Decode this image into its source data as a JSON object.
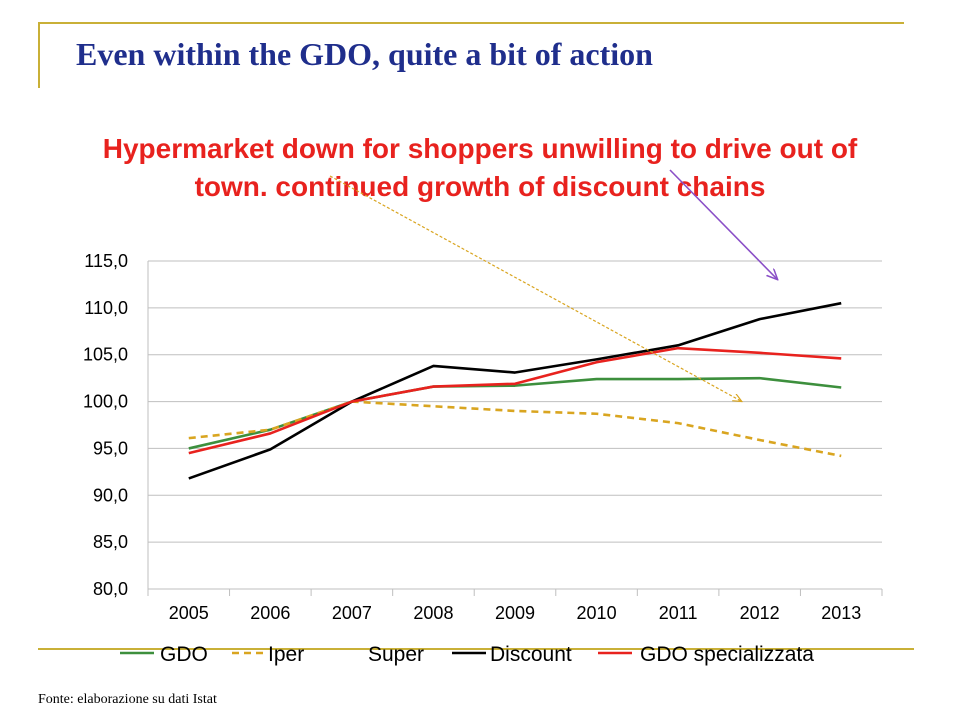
{
  "slide": {
    "title": "Even within the GDO, quite a bit of action",
    "source": "Fonte: elaborazione su dati Istat",
    "accent": "#1f2e8c",
    "frame_color": "#c9b037"
  },
  "chart_data": {
    "type": "line",
    "title": "Hypermarket down for shoppers unwilling to drive out of town. continued growth of discount chains",
    "title_color": "#e8221e",
    "xlabel": "",
    "ylabel": "",
    "x": [
      "2005",
      "2006",
      "2007",
      "2008",
      "2009",
      "2010",
      "2011",
      "2012",
      "2013"
    ],
    "ylim": [
      80,
      115
    ],
    "yticks": [
      "115,0",
      "110,0",
      "105,0",
      "100,0",
      "95,0",
      "90,0",
      "85,0",
      "80,0"
    ],
    "grid": true,
    "legend_position": "bottom",
    "series": [
      {
        "name": "GDO",
        "color": "#3d8f3d",
        "dash": false,
        "values": [
          95.0,
          97.0,
          100.0,
          101.6,
          101.7,
          102.4,
          102.4,
          102.5,
          101.5
        ]
      },
      {
        "name": "Iper",
        "color": "#d9a520",
        "dash": true,
        "values": [
          96.1,
          97.0,
          100.0,
          99.5,
          99.0,
          98.7,
          97.7,
          95.9,
          94.2
        ]
      },
      {
        "name": "Super",
        "color": "#ffffff",
        "dash": false,
        "values": [
          null,
          null,
          null,
          null,
          null,
          null,
          null,
          null,
          null
        ]
      },
      {
        "name": "Discount",
        "color": "#000000",
        "dash": false,
        "values": [
          91.8,
          94.9,
          100.0,
          103.8,
          103.1,
          104.5,
          106.0,
          108.8,
          110.5
        ]
      },
      {
        "name": "GDO specializzata",
        "color": "#e8221e",
        "dash": false,
        "values": [
          94.5,
          96.6,
          100.0,
          101.6,
          101.9,
          104.2,
          105.7,
          105.2,
          104.6
        ]
      }
    ],
    "annotations": [
      {
        "type": "arrow",
        "color": "#d9a520",
        "style": "dotted",
        "target_series": "Iper"
      },
      {
        "type": "arrow",
        "color": "#8a4fc7",
        "style": "solid",
        "target_series": "Discount"
      }
    ]
  }
}
